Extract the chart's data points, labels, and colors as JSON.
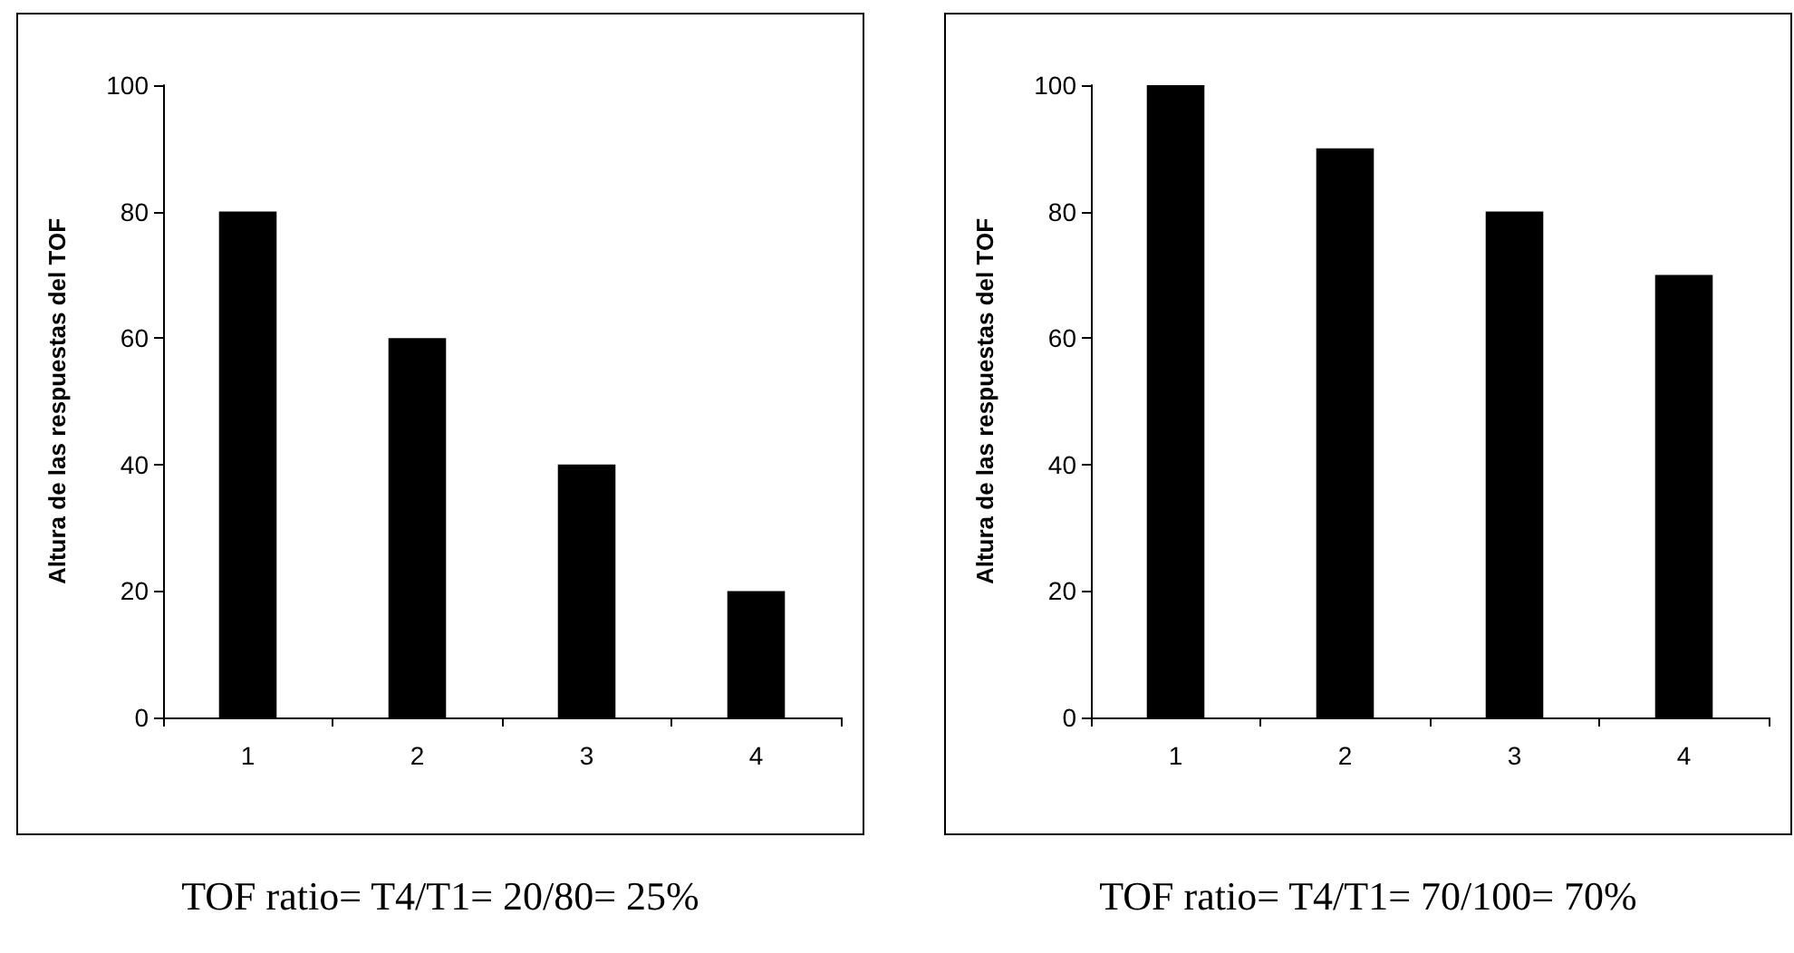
{
  "chart_data": [
    {
      "type": "bar",
      "ylabel": "Altura de las respuestas del TOF",
      "categories": [
        "1",
        "2",
        "3",
        "4"
      ],
      "values": [
        80,
        60,
        40,
        20
      ],
      "color": "#000000",
      "ylim": [
        0,
        100
      ],
      "yticks": [
        0,
        20,
        40,
        60,
        80,
        100
      ],
      "annotations": [
        "TOF ratio= T4/T1= 20/80= 25%"
      ]
    },
    {
      "type": "bar",
      "ylabel": "Altura de las respuestas del TOF",
      "categories": [
        "1",
        "2",
        "3",
        "4"
      ],
      "values": [
        100,
        90,
        80,
        70
      ],
      "color": "#000000",
      "ylim": [
        0,
        100
      ],
      "yticks": [
        0,
        20,
        40,
        60,
        80,
        100
      ],
      "annotations": [
        "TOF ratio= T4/T1= 70/100= 70%"
      ]
    }
  ]
}
